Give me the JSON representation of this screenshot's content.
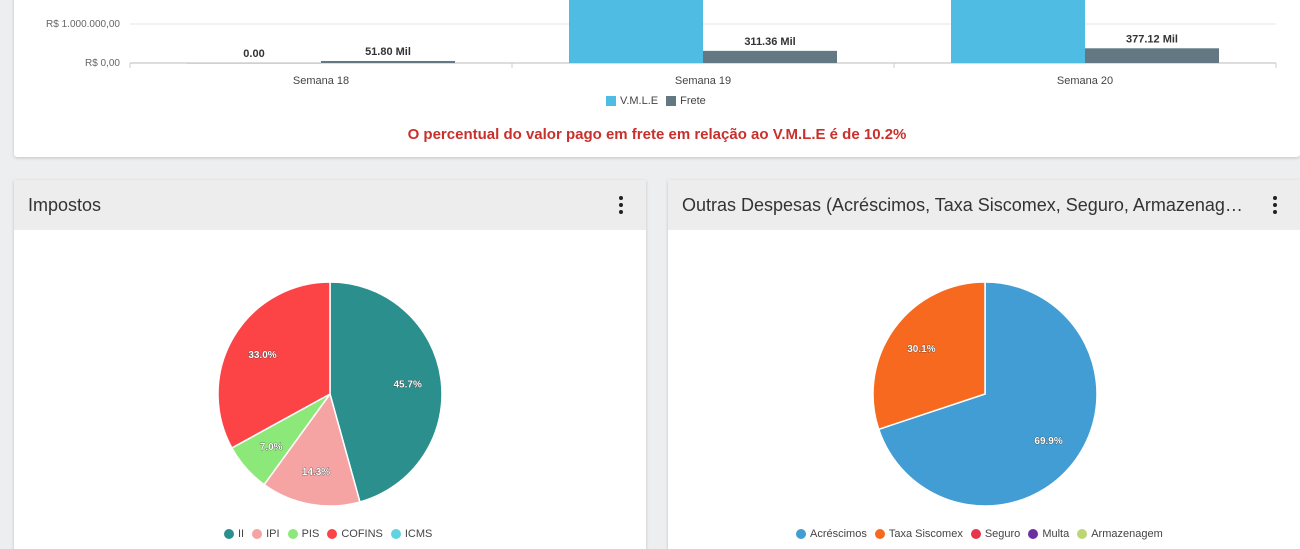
{
  "bar_panel": {
    "note": "O percentual do valor pago em frete em relação ao V.M.L.E é de 10.2%",
    "legend": [
      {
        "label": "V.M.L.E",
        "color": "#4fbde3"
      },
      {
        "label": "Frete",
        "color": "#637883"
      }
    ]
  },
  "taxes_panel": {
    "title": "Impostos",
    "legend": [
      {
        "label": "II",
        "color": "#2a8f8d"
      },
      {
        "label": "IPI",
        "color": "#f5a3a3"
      },
      {
        "label": "PIS",
        "color": "#8de87a"
      },
      {
        "label": "COFINS",
        "color": "#fc4345"
      },
      {
        "label": "ICMS",
        "color": "#5fd3e0"
      }
    ]
  },
  "other_panel": {
    "title": "Outras Despesas (Acréscimos, Taxa Siscomex, Seguro, Armazenag…",
    "legend": [
      {
        "label": "Acréscimos",
        "color": "#419dd3"
      },
      {
        "label": "Taxa Siscomex",
        "color": "#f6691f"
      },
      {
        "label": "Seguro",
        "color": "#e8334b"
      },
      {
        "label": "Multa",
        "color": "#6b2fa0"
      },
      {
        "label": "Armazenagem",
        "color": "#bdd575"
      }
    ]
  },
  "chart_data": [
    {
      "type": "bar",
      "categories": [
        "Semana 18",
        "Semana 19",
        "Semana 20"
      ],
      "y_ticks": [
        "R$ 1.000.000,00",
        "R$ 0,00"
      ],
      "series": [
        {
          "name": "V.M.L.E",
          "values": [
            0,
            null,
            null
          ],
          "labels": [
            "0.00",
            "",
            ""
          ],
          "color": "#4fbde3"
        },
        {
          "name": "Frete",
          "values": [
            51800,
            311360,
            377120
          ],
          "labels": [
            "51.80 Mil",
            "311.36 Mil",
            "377.12 Mil"
          ],
          "color": "#637883"
        }
      ]
    },
    {
      "type": "pie",
      "title": "Impostos",
      "labels": [
        "II",
        "IPI",
        "PIS",
        "COFINS",
        "ICMS"
      ],
      "values": [
        45.7,
        14.3,
        7.0,
        33.0,
        0
      ],
      "value_labels": [
        "45.7%",
        "14.3%",
        "7.0%",
        "33.0%",
        ""
      ],
      "colors": [
        "#2a8f8d",
        "#f5a3a3",
        "#8de87a",
        "#fc4345",
        "#5fd3e0"
      ]
    },
    {
      "type": "pie",
      "title": "Outras Despesas (Acréscimos, Taxa Siscomex, Seguro, Armazenag…",
      "labels": [
        "Acréscimos",
        "Taxa Siscomex",
        "Seguro",
        "Multa",
        "Armazenagem"
      ],
      "values": [
        69.9,
        30.1,
        0,
        0,
        0
      ],
      "value_labels": [
        "69.9%",
        "30.1%",
        "",
        "",
        ""
      ],
      "colors": [
        "#419dd3",
        "#f6691f",
        "#e8334b",
        "#6b2fa0",
        "#bdd575"
      ]
    }
  ]
}
